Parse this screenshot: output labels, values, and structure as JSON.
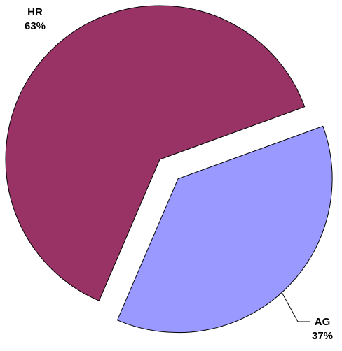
{
  "chart_data": {
    "type": "pie",
    "categories": [
      "HR",
      "AG"
    ],
    "values": [
      63,
      37
    ],
    "value_labels": [
      "63%",
      "37%"
    ],
    "colors": [
      "#993366",
      "#9999ff"
    ]
  }
}
